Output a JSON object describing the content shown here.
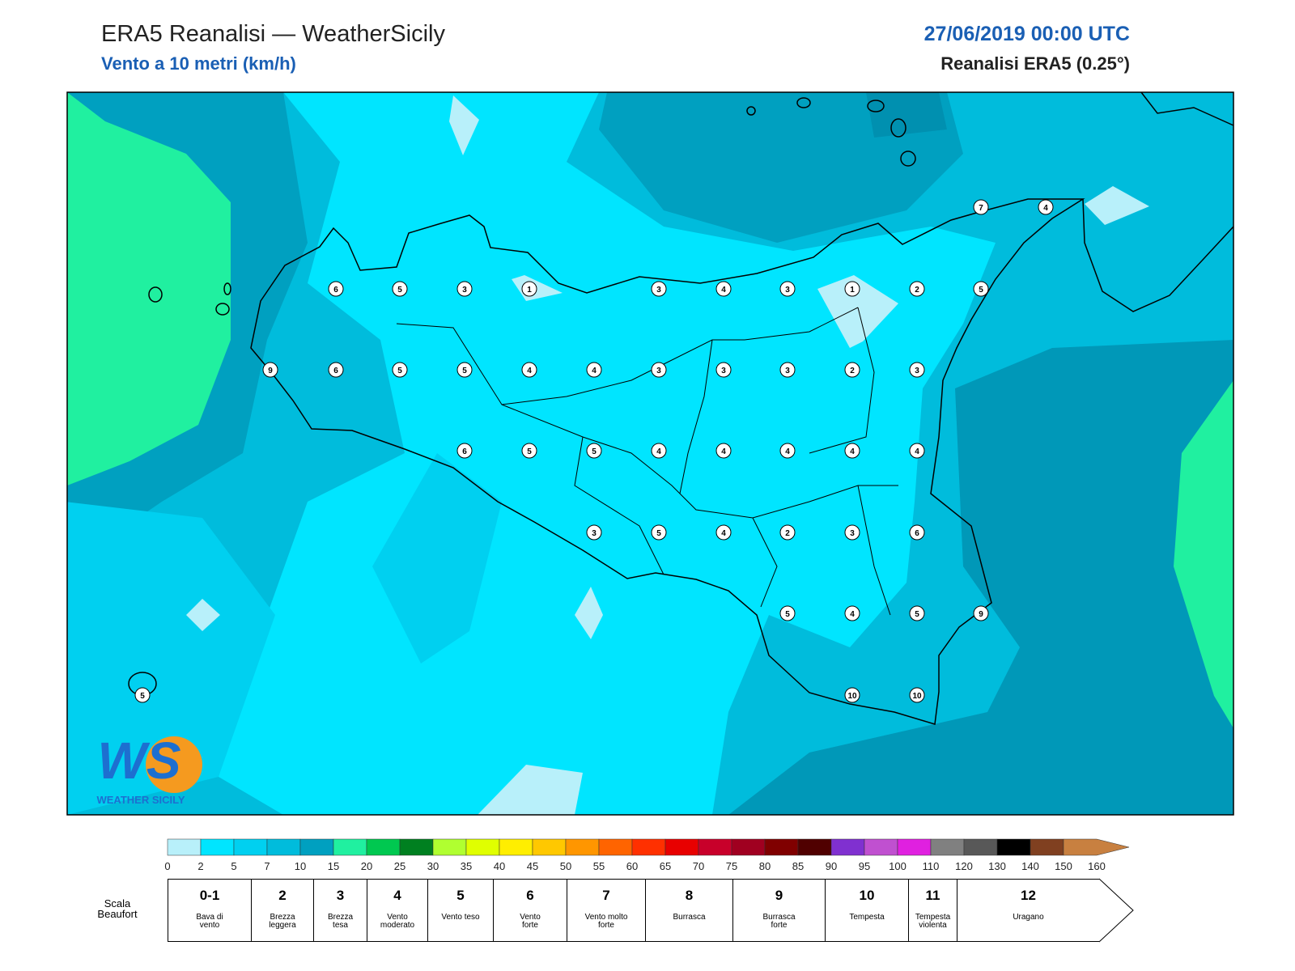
{
  "header": {
    "title": "ERA5 Reanalisi — WeatherSicily",
    "subtitle": "Vento a 10 metri (km/h)",
    "date": "27/06/2019 00:00 UTC",
    "source": "Reanalisi ERA5 (0.25°)"
  },
  "stations": [
    6,
    5,
    3,
    1,
    3,
    4,
    3,
    1,
    2,
    5,
    9,
    6,
    5,
    5,
    4,
    4,
    3,
    3,
    3,
    2,
    3,
    6,
    5,
    5,
    4,
    4,
    4,
    4,
    4,
    3,
    5,
    4,
    2,
    3,
    6,
    5,
    4,
    5,
    9,
    10,
    10,
    7,
    4,
    5
  ],
  "logo": {
    "mark": "WS",
    "name": "WEATHER SICILY"
  },
  "colorbar": {
    "ticks": [
      0,
      2,
      5,
      7,
      10,
      15,
      20,
      25,
      30,
      35,
      40,
      45,
      50,
      55,
      60,
      65,
      70,
      75,
      80,
      85,
      90,
      95,
      100,
      110,
      120,
      130,
      140,
      150,
      160
    ],
    "colors": [
      "#b8f0fa",
      "#00e5ff",
      "#00d0f0",
      "#00bcdc",
      "#00a0c0",
      "#20f0a0",
      "#00c850",
      "#008020",
      "#b0ff30",
      "#e0ff00",
      "#ffee00",
      "#ffc800",
      "#ff9600",
      "#ff6400",
      "#ff3000",
      "#e80000",
      "#c8002a",
      "#a00020",
      "#800000",
      "#500000",
      "#8030d0",
      "#c050d0",
      "#e020e0",
      "#808080",
      "#585858",
      "#000000",
      "#804020",
      "#c88040"
    ]
  },
  "beaufort": {
    "label": "Scala\nBeaufort",
    "classes": [
      {
        "force": "0-1",
        "name": "Bava di\nvento"
      },
      {
        "force": "2",
        "name": "Brezza\nleggera"
      },
      {
        "force": "3",
        "name": "Brezza\ntesa"
      },
      {
        "force": "4",
        "name": "Vento\nmoderato"
      },
      {
        "force": "5",
        "name": "Vento teso"
      },
      {
        "force": "6",
        "name": "Vento\nforte"
      },
      {
        "force": "7",
        "name": "Vento molto\nforte"
      },
      {
        "force": "8",
        "name": "Burrasca"
      },
      {
        "force": "9",
        "name": "Burrasca\nforte"
      },
      {
        "force": "10",
        "name": "Tempesta"
      },
      {
        "force": "11",
        "name": "Tempesta\nviolenta"
      },
      {
        "force": "12",
        "name": "Uragano"
      }
    ]
  }
}
